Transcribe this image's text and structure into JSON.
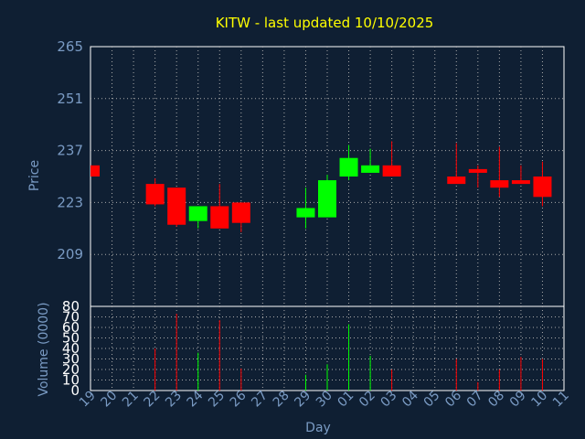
{
  "chart_data": {
    "type": "candlestick",
    "title": "KITW - last updated 10/10/2025",
    "xlabel": "Day",
    "price_panel": {
      "ylabel": "Price",
      "ylim": [
        195,
        265
      ],
      "yticks": [
        "265",
        "251",
        "237",
        "223",
        "209"
      ]
    },
    "volume_panel": {
      "ylabel": "Volume (0000)",
      "ylim": [
        0,
        80
      ],
      "yticks": [
        "80",
        "70",
        "60",
        "50",
        "40",
        "30",
        "20",
        "10",
        "0"
      ]
    },
    "x_labels": [
      "19",
      "20",
      "21",
      "22",
      "23",
      "24",
      "25",
      "26",
      "27",
      "28",
      "29",
      "30",
      "01",
      "02",
      "03",
      "04",
      "05",
      "06",
      "07",
      "08",
      "09",
      "10",
      "11"
    ],
    "candles": [
      {
        "day": "19",
        "open": 233.0,
        "close": 230.0,
        "high": 233.0,
        "low": 230.0,
        "volume": null
      },
      {
        "day": "22",
        "open": 228.0,
        "close": 222.5,
        "high": 229.5,
        "low": 222.0,
        "volume": 40
      },
      {
        "day": "23",
        "open": 227.0,
        "close": 217.0,
        "high": 227.0,
        "low": 216.5,
        "volume": 73
      },
      {
        "day": "24",
        "open": 218.0,
        "close": 222.0,
        "high": 222.0,
        "low": 216.0,
        "volume": 36
      },
      {
        "day": "25",
        "open": 222.0,
        "close": 216.0,
        "high": 228.0,
        "low": 216.0,
        "volume": 67
      },
      {
        "day": "26",
        "open": 223.0,
        "close": 217.5,
        "high": 223.0,
        "low": 215.0,
        "volume": 21
      },
      {
        "day": "29",
        "open": 219.0,
        "close": 221.5,
        "high": 227.0,
        "low": 216.0,
        "volume": 15
      },
      {
        "day": "30",
        "open": 219.0,
        "close": 229.0,
        "high": 230.5,
        "low": 219.0,
        "volume": 25
      },
      {
        "day": "01",
        "open": 230.0,
        "close": 235.0,
        "high": 238.5,
        "low": 229.0,
        "volume": 63
      },
      {
        "day": "02",
        "open": 231.0,
        "close": 233.0,
        "high": 237.5,
        "low": 231.0,
        "volume": 33
      },
      {
        "day": "03",
        "open": 233.0,
        "close": 230.0,
        "high": 239.5,
        "low": 230.0,
        "volume": 20
      },
      {
        "day": "06",
        "open": 230.0,
        "close": 228.0,
        "high": 239.0,
        "low": 228.0,
        "volume": 30
      },
      {
        "day": "07",
        "open": 232.0,
        "close": 231.0,
        "high": 233.0,
        "low": 227.0,
        "volume": 8
      },
      {
        "day": "08",
        "open": 229.0,
        "close": 227.0,
        "high": 238.0,
        "low": 224.5,
        "volume": 20
      },
      {
        "day": "09",
        "open": 229.0,
        "close": 228.0,
        "high": 233.0,
        "low": 228.0,
        "volume": 32
      },
      {
        "day": "10",
        "open": 230.0,
        "close": 224.5,
        "high": 234.0,
        "low": 222.0,
        "volume": 30
      }
    ],
    "colors": {
      "background": "#0f1f33",
      "up": "#00ff00",
      "down": "#ff0000",
      "title": "#ffff00",
      "axis_text": "#7a9bc4",
      "volume_tick_text": "#ffffff",
      "frame": "#ffffff",
      "grid": "#aaaaaa"
    },
    "grid": true
  }
}
